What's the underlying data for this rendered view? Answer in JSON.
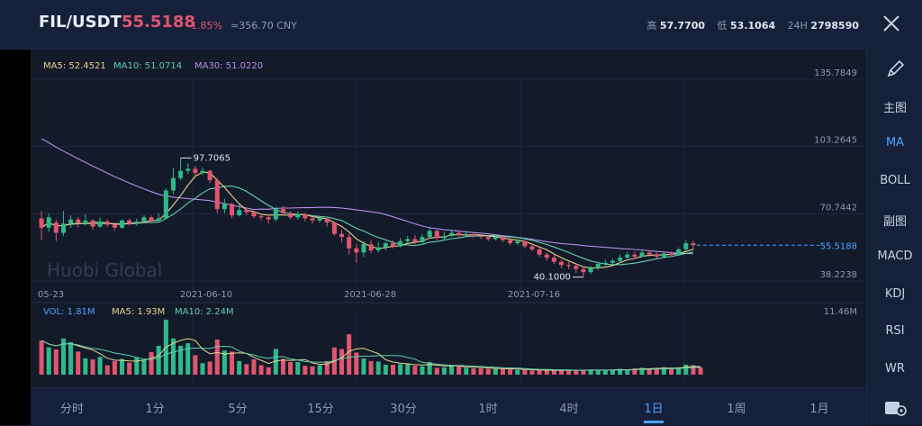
{
  "header": {
    "pair": "FIL/USDT",
    "price": "55.5188",
    "change": "-1.85%",
    "cny": "≈356.70 CNY",
    "high_label": "高",
    "high_value": "57.7700",
    "low_label": "低",
    "low_value": "53.1064",
    "vol_label": "24H",
    "vol_value": "2798590"
  },
  "colors": {
    "up": "#2fb98a",
    "down": "#e0566e",
    "ma5": "#e8d48c",
    "ma10": "#5fd0b0",
    "ma30": "#b48ee8",
    "accent": "#4aa3ff"
  },
  "legend": {
    "ma5": "MA5: 52.4521",
    "ma10": "MA10: 51.0714",
    "ma30": "MA30: 51.0220"
  },
  "vol_legend": {
    "vol": "VOL: 1.81M",
    "ma5": "MA5: 1.93M",
    "ma10": "MA10: 2.24M"
  },
  "watermark": "Huobi Global",
  "chart_data": {
    "type": "candlestick",
    "price_axis": [
      "135.7849",
      "103.2645",
      "70.7442",
      "38.2238"
    ],
    "last_price_label": "55.5188",
    "high_annotation": "97.7065",
    "low_annotation": "40.1000",
    "date_labels": [
      "05-23",
      "2021-06-10",
      "2021-06-28",
      "2021-07-16"
    ],
    "volume_axis_max": "11.46M",
    "ylim": [
      38.2238,
      135.7849
    ],
    "candles": [
      {
        "o": 68.5,
        "c": 64.0,
        "h": 72.0,
        "l": 58.0
      },
      {
        "o": 64.0,
        "c": 69.0,
        "h": 71.0,
        "l": 62.0
      },
      {
        "o": 66.5,
        "c": 61.5,
        "h": 68.0,
        "l": 57.5
      },
      {
        "o": 61.5,
        "c": 66.0,
        "h": 72.0,
        "l": 60.0
      },
      {
        "o": 66.0,
        "c": 68.0,
        "h": 70.0,
        "l": 64.0
      },
      {
        "o": 68.0,
        "c": 66.5,
        "h": 69.0,
        "l": 64.0
      },
      {
        "o": 66.5,
        "c": 67.5,
        "h": 70.5,
        "l": 65.0
      },
      {
        "o": 67.5,
        "c": 64.5,
        "h": 68.0,
        "l": 63.0
      },
      {
        "o": 64.5,
        "c": 67.0,
        "h": 69.0,
        "l": 64.0
      },
      {
        "o": 67.0,
        "c": 65.5,
        "h": 68.0,
        "l": 64.5
      },
      {
        "o": 65.5,
        "c": 64.0,
        "h": 66.5,
        "l": 62.5
      },
      {
        "o": 64.0,
        "c": 67.5,
        "h": 68.0,
        "l": 63.5
      },
      {
        "o": 67.5,
        "c": 66.0,
        "h": 68.5,
        "l": 65.0
      },
      {
        "o": 66.0,
        "c": 67.0,
        "h": 68.5,
        "l": 65.0
      },
      {
        "o": 67.0,
        "c": 69.0,
        "h": 70.0,
        "l": 66.0
      },
      {
        "o": 69.0,
        "c": 67.5,
        "h": 70.0,
        "l": 66.0
      },
      {
        "o": 67.5,
        "c": 68.5,
        "h": 71.0,
        "l": 67.0
      },
      {
        "o": 68.5,
        "c": 82.0,
        "h": 83.0,
        "l": 68.0
      },
      {
        "o": 82.0,
        "c": 88.0,
        "h": 93.0,
        "l": 80.0
      },
      {
        "o": 88.0,
        "c": 91.5,
        "h": 97.7,
        "l": 87.0
      },
      {
        "o": 91.5,
        "c": 92.5,
        "h": 95.0,
        "l": 90.0
      },
      {
        "o": 92.5,
        "c": 90.5,
        "h": 94.0,
        "l": 88.0
      },
      {
        "o": 90.5,
        "c": 91.5,
        "h": 93.0,
        "l": 89.5
      },
      {
        "o": 91.5,
        "c": 87.0,
        "h": 92.0,
        "l": 85.5
      },
      {
        "o": 87.0,
        "c": 73.0,
        "h": 88.0,
        "l": 71.0
      },
      {
        "o": 73.0,
        "c": 75.5,
        "h": 78.0,
        "l": 71.0
      },
      {
        "o": 75.5,
        "c": 70.0,
        "h": 76.0,
        "l": 68.5
      },
      {
        "o": 70.0,
        "c": 72.5,
        "h": 76.0,
        "l": 69.5
      },
      {
        "o": 72.5,
        "c": 71.5,
        "h": 73.5,
        "l": 70.0
      },
      {
        "o": 71.5,
        "c": 69.5,
        "h": 72.0,
        "l": 68.5
      },
      {
        "o": 69.5,
        "c": 69.0,
        "h": 71.0,
        "l": 67.5
      },
      {
        "o": 69.0,
        "c": 68.0,
        "h": 70.5,
        "l": 66.0
      },
      {
        "o": 68.0,
        "c": 73.0,
        "h": 74.0,
        "l": 67.0
      },
      {
        "o": 73.0,
        "c": 71.0,
        "h": 74.5,
        "l": 70.0
      },
      {
        "o": 71.0,
        "c": 69.0,
        "h": 72.0,
        "l": 68.0
      },
      {
        "o": 69.0,
        "c": 70.5,
        "h": 72.0,
        "l": 68.0
      },
      {
        "o": 70.5,
        "c": 68.5,
        "h": 71.0,
        "l": 67.0
      },
      {
        "o": 68.5,
        "c": 67.5,
        "h": 69.5,
        "l": 66.0
      },
      {
        "o": 67.5,
        "c": 68.5,
        "h": 69.5,
        "l": 66.5
      },
      {
        "o": 68.5,
        "c": 66.5,
        "h": 69.0,
        "l": 64.5
      },
      {
        "o": 66.5,
        "c": 61.0,
        "h": 67.0,
        "l": 60.0
      },
      {
        "o": 61.0,
        "c": 59.5,
        "h": 63.0,
        "l": 57.0
      },
      {
        "o": 59.5,
        "c": 54.0,
        "h": 61.0,
        "l": 51.0
      },
      {
        "o": 54.0,
        "c": 52.0,
        "h": 56.0,
        "l": 47.0
      },
      {
        "o": 52.0,
        "c": 56.0,
        "h": 57.5,
        "l": 50.0
      },
      {
        "o": 56.0,
        "c": 53.0,
        "h": 58.0,
        "l": 51.5
      },
      {
        "o": 53.0,
        "c": 54.5,
        "h": 57.0,
        "l": 52.0
      },
      {
        "o": 54.5,
        "c": 56.5,
        "h": 57.5,
        "l": 53.0
      },
      {
        "o": 56.5,
        "c": 55.0,
        "h": 58.0,
        "l": 54.0
      },
      {
        "o": 55.0,
        "c": 57.5,
        "h": 59.0,
        "l": 54.5
      },
      {
        "o": 57.5,
        "c": 58.5,
        "h": 60.0,
        "l": 56.5
      },
      {
        "o": 58.5,
        "c": 57.0,
        "h": 60.5,
        "l": 56.0
      },
      {
        "o": 57.0,
        "c": 59.5,
        "h": 61.0,
        "l": 56.5
      },
      {
        "o": 59.5,
        "c": 62.5,
        "h": 64.0,
        "l": 59.0
      },
      {
        "o": 62.5,
        "c": 59.0,
        "h": 63.0,
        "l": 58.0
      },
      {
        "o": 59.0,
        "c": 60.0,
        "h": 62.0,
        "l": 58.0
      },
      {
        "o": 60.0,
        "c": 61.5,
        "h": 63.0,
        "l": 59.5
      },
      {
        "o": 61.5,
        "c": 60.5,
        "h": 62.5,
        "l": 59.5
      },
      {
        "o": 60.5,
        "c": 61.0,
        "h": 62.5,
        "l": 60.0
      },
      {
        "o": 61.0,
        "c": 60.0,
        "h": 61.5,
        "l": 59.0
      },
      {
        "o": 60.0,
        "c": 59.5,
        "h": 61.0,
        "l": 58.5
      },
      {
        "o": 59.5,
        "c": 58.5,
        "h": 60.5,
        "l": 57.5
      },
      {
        "o": 58.5,
        "c": 59.5,
        "h": 60.5,
        "l": 58.0
      },
      {
        "o": 59.5,
        "c": 58.0,
        "h": 60.0,
        "l": 57.0
      },
      {
        "o": 58.0,
        "c": 56.5,
        "h": 59.0,
        "l": 55.5
      },
      {
        "o": 56.5,
        "c": 57.5,
        "h": 58.5,
        "l": 55.5
      },
      {
        "o": 57.5,
        "c": 55.0,
        "h": 58.0,
        "l": 54.0
      },
      {
        "o": 55.0,
        "c": 53.5,
        "h": 56.0,
        "l": 52.5
      },
      {
        "o": 53.5,
        "c": 51.0,
        "h": 54.5,
        "l": 50.0
      },
      {
        "o": 51.0,
        "c": 49.5,
        "h": 52.0,
        "l": 48.0
      },
      {
        "o": 49.5,
        "c": 47.5,
        "h": 51.0,
        "l": 46.5
      },
      {
        "o": 47.5,
        "c": 46.0,
        "h": 48.5,
        "l": 44.5
      },
      {
        "o": 46.0,
        "c": 45.5,
        "h": 47.5,
        "l": 44.0
      },
      {
        "o": 45.5,
        "c": 44.0,
        "h": 46.5,
        "l": 42.0
      },
      {
        "o": 44.0,
        "c": 42.5,
        "h": 45.0,
        "l": 40.1
      },
      {
        "o": 42.5,
        "c": 44.5,
        "h": 45.5,
        "l": 41.5
      },
      {
        "o": 44.5,
        "c": 46.5,
        "h": 47.5,
        "l": 43.5
      },
      {
        "o": 46.5,
        "c": 47.0,
        "h": 48.5,
        "l": 45.5
      },
      {
        "o": 47.0,
        "c": 48.0,
        "h": 49.0,
        "l": 46.0
      },
      {
        "o": 48.0,
        "c": 49.5,
        "h": 51.0,
        "l": 47.0
      },
      {
        "o": 49.5,
        "c": 51.0,
        "h": 52.5,
        "l": 49.0
      },
      {
        "o": 51.0,
        "c": 50.0,
        "h": 52.5,
        "l": 49.0
      },
      {
        "o": 50.0,
        "c": 52.0,
        "h": 53.5,
        "l": 49.5
      },
      {
        "o": 52.0,
        "c": 51.0,
        "h": 53.0,
        "l": 50.0
      },
      {
        "o": 51.0,
        "c": 50.0,
        "h": 52.0,
        "l": 49.0
      },
      {
        "o": 50.0,
        "c": 51.5,
        "h": 52.5,
        "l": 49.5
      },
      {
        "o": 51.5,
        "c": 51.0,
        "h": 52.5,
        "l": 50.0
      },
      {
        "o": 51.0,
        "c": 53.5,
        "h": 54.5,
        "l": 50.5
      },
      {
        "o": 53.5,
        "c": 56.5,
        "h": 58.0,
        "l": 53.0
      },
      {
        "o": 56.5,
        "c": 55.5,
        "h": 57.7,
        "l": 53.1
      }
    ],
    "volumes": [
      6.5,
      5.2,
      4.8,
      6.9,
      6.2,
      4.4,
      3.1,
      2.9,
      3.4,
      1.8,
      2.6,
      3.0,
      2.3,
      3.2,
      2.8,
      4.3,
      5.5,
      10.5,
      6.9,
      5.5,
      6.0,
      3.7,
      2.2,
      2.5,
      6.7,
      4.6,
      4.4,
      2.6,
      2.0,
      2.9,
      1.8,
      1.4,
      4.9,
      3.0,
      2.4,
      2.4,
      1.7,
      1.6,
      1.8,
      2.6,
      5.2,
      4.9,
      7.7,
      4.2,
      3.1,
      2.6,
      2.5,
      1.9,
      1.9,
      2.0,
      2.0,
      1.7,
      1.6,
      2.4,
      1.3,
      1.4,
      1.7,
      1.6,
      1.3,
      1.2,
      1.2,
      1.1,
      1.2,
      1.1,
      1.0,
      0.9,
      0.9,
      0.8,
      0.8,
      0.9,
      0.8,
      0.9,
      0.8,
      0.8,
      0.9,
      1.0,
      0.9,
      0.8,
      0.9,
      1.1,
      1.0,
      1.2,
      1.3,
      1.1,
      1.3,
      1.4,
      1.2,
      1.4,
      1.9,
      1.8,
      1.4
    ]
  },
  "sidebar": {
    "items": [
      {
        "key": "pencil",
        "label": ""
      },
      {
        "key": "main",
        "label": "主图"
      },
      {
        "key": "ma",
        "label": "MA",
        "active": true
      },
      {
        "key": "boll",
        "label": "BOLL"
      },
      {
        "key": "sub",
        "label": "副图"
      },
      {
        "key": "macd",
        "label": "MACD"
      },
      {
        "key": "kdj",
        "label": "KDJ"
      },
      {
        "key": "rsi",
        "label": "RSI"
      },
      {
        "key": "wr",
        "label": "WR"
      }
    ],
    "settings_icon": "settings-gear-icon"
  },
  "timeframes": [
    {
      "label": "分时"
    },
    {
      "label": "1分"
    },
    {
      "label": "5分"
    },
    {
      "label": "15分"
    },
    {
      "label": "30分"
    },
    {
      "label": "1时"
    },
    {
      "label": "4时"
    },
    {
      "label": "1日",
      "active": true
    },
    {
      "label": "1周"
    },
    {
      "label": "1月"
    }
  ]
}
